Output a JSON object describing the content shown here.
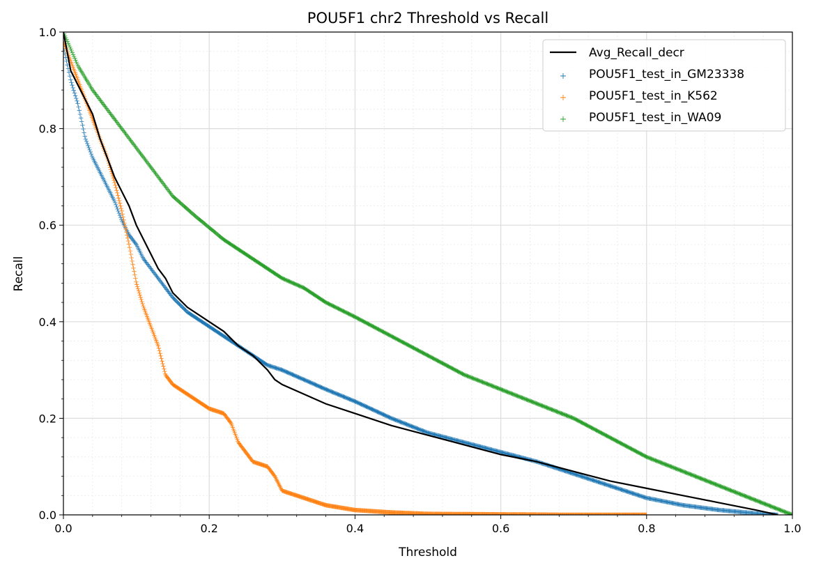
{
  "chart_data": {
    "type": "scatter",
    "title": "POU5F1 chr2 Threshold vs Recall",
    "xlabel": "Threshold",
    "ylabel": "Recall",
    "xlim": [
      0.0,
      1.0
    ],
    "ylim": [
      0.0,
      1.0
    ],
    "xticks": [
      "0.0",
      "0.2",
      "0.4",
      "0.6",
      "0.8",
      "1.0"
    ],
    "yticks": [
      "0.0",
      "0.2",
      "0.4",
      "0.6",
      "0.8",
      "1.0"
    ],
    "grid": true,
    "legend_position": "top-right",
    "series": [
      {
        "name": "Avg_Recall_decr",
        "style": "line",
        "color": "#000000",
        "x": [
          0.0,
          0.01,
          0.02,
          0.03,
          0.04,
          0.05,
          0.06,
          0.07,
          0.08,
          0.09,
          0.1,
          0.11,
          0.12,
          0.13,
          0.14,
          0.15,
          0.17,
          0.2,
          0.22,
          0.24,
          0.26,
          0.28,
          0.29,
          0.3,
          0.33,
          0.36,
          0.4,
          0.45,
          0.5,
          0.55,
          0.6,
          0.65,
          0.7,
          0.75,
          0.8,
          0.85,
          0.9,
          0.95,
          0.98
        ],
        "y": [
          1.0,
          0.92,
          0.89,
          0.86,
          0.83,
          0.78,
          0.74,
          0.7,
          0.67,
          0.64,
          0.6,
          0.57,
          0.54,
          0.51,
          0.49,
          0.46,
          0.43,
          0.4,
          0.38,
          0.35,
          0.33,
          0.3,
          0.28,
          0.27,
          0.25,
          0.23,
          0.21,
          0.185,
          0.165,
          0.145,
          0.125,
          0.11,
          0.09,
          0.07,
          0.055,
          0.04,
          0.025,
          0.01,
          0.0
        ]
      },
      {
        "name": "POU5F1_test_in_GM23338",
        "style": "plus",
        "color": "#1f77b4",
        "x": [
          0.0,
          0.01,
          0.02,
          0.03,
          0.04,
          0.05,
          0.06,
          0.07,
          0.08,
          0.09,
          0.1,
          0.11,
          0.12,
          0.13,
          0.14,
          0.15,
          0.17,
          0.2,
          0.22,
          0.24,
          0.26,
          0.28,
          0.3,
          0.33,
          0.36,
          0.4,
          0.45,
          0.5,
          0.55,
          0.6,
          0.65,
          0.7,
          0.75,
          0.8,
          0.85,
          0.9,
          0.95,
          0.98
        ],
        "y": [
          0.97,
          0.9,
          0.85,
          0.78,
          0.74,
          0.71,
          0.68,
          0.65,
          0.61,
          0.58,
          0.56,
          0.53,
          0.51,
          0.49,
          0.47,
          0.45,
          0.42,
          0.39,
          0.37,
          0.35,
          0.33,
          0.31,
          0.3,
          0.28,
          0.26,
          0.235,
          0.2,
          0.17,
          0.15,
          0.13,
          0.11,
          0.085,
          0.06,
          0.035,
          0.02,
          0.01,
          0.003,
          0.0
        ]
      },
      {
        "name": "POU5F1_test_in_K562",
        "style": "plus",
        "color": "#ff7f0e",
        "x": [
          0.0,
          0.01,
          0.02,
          0.03,
          0.04,
          0.05,
          0.06,
          0.07,
          0.08,
          0.09,
          0.1,
          0.11,
          0.12,
          0.13,
          0.14,
          0.15,
          0.16,
          0.17,
          0.18,
          0.2,
          0.22,
          0.23,
          0.24,
          0.25,
          0.26,
          0.28,
          0.29,
          0.3,
          0.32,
          0.34,
          0.36,
          0.38,
          0.4,
          0.45,
          0.5,
          0.6,
          0.7,
          0.8
        ],
        "y": [
          0.98,
          0.94,
          0.9,
          0.86,
          0.82,
          0.78,
          0.74,
          0.69,
          0.63,
          0.56,
          0.48,
          0.43,
          0.39,
          0.35,
          0.29,
          0.27,
          0.26,
          0.25,
          0.24,
          0.22,
          0.21,
          0.19,
          0.15,
          0.13,
          0.11,
          0.1,
          0.08,
          0.05,
          0.04,
          0.03,
          0.02,
          0.015,
          0.01,
          0.005,
          0.002,
          0.001,
          0.0,
          0.0
        ]
      },
      {
        "name": "POU5F1_test_in_WA09",
        "style": "plus",
        "color": "#2ca02c",
        "x": [
          0.0,
          0.02,
          0.04,
          0.06,
          0.08,
          0.1,
          0.12,
          0.15,
          0.18,
          0.2,
          0.22,
          0.25,
          0.28,
          0.3,
          0.33,
          0.36,
          0.4,
          0.45,
          0.5,
          0.55,
          0.6,
          0.65,
          0.7,
          0.75,
          0.8,
          0.85,
          0.9,
          0.95,
          1.0
        ],
        "y": [
          1.0,
          0.93,
          0.88,
          0.84,
          0.8,
          0.76,
          0.72,
          0.66,
          0.62,
          0.595,
          0.57,
          0.54,
          0.51,
          0.49,
          0.47,
          0.44,
          0.41,
          0.37,
          0.33,
          0.29,
          0.26,
          0.23,
          0.2,
          0.16,
          0.12,
          0.09,
          0.06,
          0.03,
          0.0
        ]
      }
    ]
  }
}
